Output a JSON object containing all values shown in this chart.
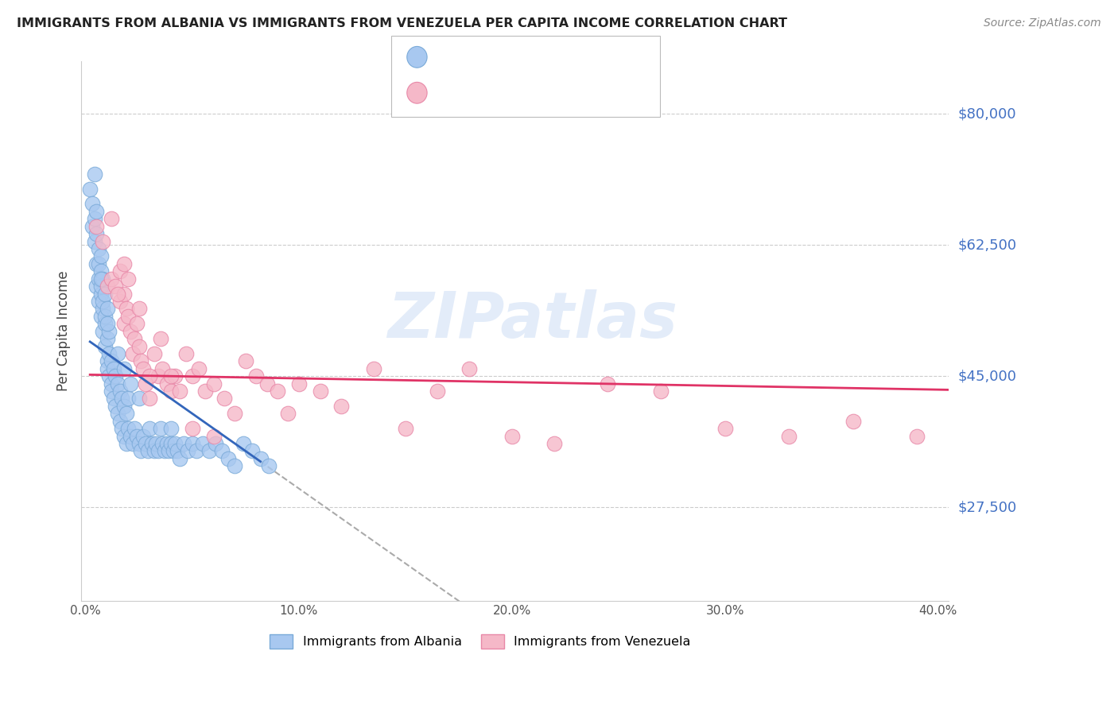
{
  "title": "IMMIGRANTS FROM ALBANIA VS IMMIGRANTS FROM VENEZUELA PER CAPITA INCOME CORRELATION CHART",
  "source": "Source: ZipAtlas.com",
  "ylabel": "Per Capita Income",
  "ytick_labels": [
    "$27,500",
    "$45,000",
    "$62,500",
    "$80,000"
  ],
  "ytick_vals": [
    27500,
    45000,
    62500,
    80000
  ],
  "ylim": [
    15000,
    87000
  ],
  "xlim": [
    -0.002,
    0.405
  ],
  "xtick_vals": [
    0.0,
    0.1,
    0.2,
    0.3,
    0.4
  ],
  "xtick_labels": [
    "0.0%",
    "10.0%",
    "20.0%",
    "30.0%",
    "40.0%"
  ],
  "watermark": "ZIPatlas",
  "albania_color": "#a8c8f0",
  "venezuela_color": "#f5b8c8",
  "albania_edge": "#7aaad8",
  "venezuela_edge": "#e888a8",
  "trendline_albania_color": "#3366bb",
  "trendline_venezuela_color": "#e03366",
  "albania_x": [
    0.002,
    0.003,
    0.003,
    0.004,
    0.004,
    0.004,
    0.005,
    0.005,
    0.005,
    0.005,
    0.006,
    0.006,
    0.006,
    0.006,
    0.007,
    0.007,
    0.007,
    0.007,
    0.007,
    0.008,
    0.008,
    0.008,
    0.008,
    0.009,
    0.009,
    0.009,
    0.009,
    0.01,
    0.01,
    0.01,
    0.01,
    0.011,
    0.011,
    0.011,
    0.012,
    0.012,
    0.012,
    0.013,
    0.013,
    0.014,
    0.014,
    0.015,
    0.015,
    0.016,
    0.016,
    0.017,
    0.017,
    0.018,
    0.018,
    0.019,
    0.019,
    0.02,
    0.02,
    0.021,
    0.022,
    0.023,
    0.024,
    0.025,
    0.026,
    0.027,
    0.028,
    0.029,
    0.03,
    0.031,
    0.032,
    0.033,
    0.034,
    0.035,
    0.036,
    0.037,
    0.038,
    0.039,
    0.04,
    0.041,
    0.042,
    0.043,
    0.044,
    0.046,
    0.048,
    0.05,
    0.052,
    0.055,
    0.058,
    0.061,
    0.064,
    0.067,
    0.07,
    0.074,
    0.078,
    0.082,
    0.086,
    0.04,
    0.021,
    0.025,
    0.015,
    0.018,
    0.01,
    0.007
  ],
  "albania_y": [
    70000,
    68000,
    65000,
    72000,
    66000,
    63000,
    60000,
    64000,
    57000,
    67000,
    58000,
    62000,
    55000,
    60000,
    56000,
    59000,
    53000,
    61000,
    57000,
    54000,
    58000,
    51000,
    55000,
    52000,
    56000,
    49000,
    53000,
    50000,
    47000,
    54000,
    46000,
    48000,
    45000,
    51000,
    44000,
    47000,
    43000,
    46000,
    42000,
    45000,
    41000,
    44000,
    40000,
    43000,
    39000,
    42000,
    38000,
    41000,
    37000,
    40000,
    36000,
    42000,
    38000,
    37000,
    36000,
    38000,
    37000,
    36000,
    35000,
    37000,
    36000,
    35000,
    38000,
    36000,
    35000,
    36000,
    35000,
    38000,
    36000,
    35000,
    36000,
    35000,
    36000,
    35000,
    36000,
    35000,
    34000,
    36000,
    35000,
    36000,
    35000,
    36000,
    35000,
    36000,
    35000,
    34000,
    33000,
    36000,
    35000,
    34000,
    33000,
    38000,
    44000,
    42000,
    48000,
    46000,
    52000,
    58000
  ],
  "venezuela_x": [
    0.005,
    0.008,
    0.01,
    0.012,
    0.014,
    0.016,
    0.016,
    0.018,
    0.018,
    0.019,
    0.02,
    0.021,
    0.022,
    0.023,
    0.024,
    0.025,
    0.026,
    0.027,
    0.028,
    0.03,
    0.032,
    0.034,
    0.036,
    0.038,
    0.04,
    0.042,
    0.044,
    0.047,
    0.05,
    0.053,
    0.056,
    0.06,
    0.065,
    0.07,
    0.075,
    0.08,
    0.085,
    0.09,
    0.095,
    0.1,
    0.11,
    0.12,
    0.135,
    0.15,
    0.165,
    0.18,
    0.2,
    0.22,
    0.245,
    0.27,
    0.3,
    0.33,
    0.36,
    0.39,
    0.012,
    0.015,
    0.018,
    0.02,
    0.025,
    0.03,
    0.035,
    0.04,
    0.05,
    0.06
  ],
  "venezuela_y": [
    65000,
    63000,
    57000,
    58000,
    57000,
    55000,
    59000,
    56000,
    52000,
    54000,
    53000,
    51000,
    48000,
    50000,
    52000,
    49000,
    47000,
    46000,
    44000,
    42000,
    48000,
    45000,
    46000,
    44000,
    43000,
    45000,
    43000,
    48000,
    45000,
    46000,
    43000,
    44000,
    42000,
    40000,
    47000,
    45000,
    44000,
    43000,
    40000,
    44000,
    43000,
    41000,
    46000,
    38000,
    43000,
    46000,
    37000,
    36000,
    44000,
    43000,
    38000,
    37000,
    39000,
    37000,
    66000,
    56000,
    60000,
    58000,
    54000,
    45000,
    50000,
    45000,
    38000,
    37000
  ]
}
